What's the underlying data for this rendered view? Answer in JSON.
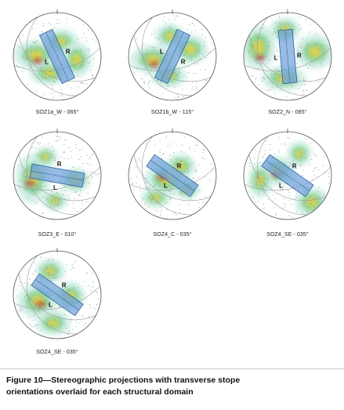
{
  "figure": {
    "panels": [
      {
        "label": "SOZ1a_W - 065°",
        "zone": "SOZ1a",
        "direction": "W",
        "orientation_deg": 65,
        "stope_letters": [
          "L",
          "R"
        ]
      },
      {
        "label": "SOZ1b_W - 115°",
        "zone": "SOZ1b",
        "direction": "W",
        "orientation_deg": 115,
        "stope_letters": [
          "L",
          "R"
        ]
      },
      {
        "label": "SOZ2_N - 085°",
        "zone": "SOZ2",
        "direction": "N",
        "orientation_deg": 85,
        "stope_letters": [
          "L",
          "R"
        ]
      },
      {
        "label": "SOZ3_E - 010°",
        "zone": "SOZ3",
        "direction": "E",
        "orientation_deg": 10,
        "stope_letters": [
          "L",
          "R"
        ]
      },
      {
        "label": "SOZ4_C - 035°",
        "zone": "SOZ4",
        "direction": "C",
        "orientation_deg": 35,
        "stope_letters": [
          "L",
          "R"
        ]
      },
      {
        "label": "SOZ4_SE - 035°",
        "zone": "SOZ4",
        "direction": "SE",
        "orientation_deg": 35,
        "stope_letters": [
          "L",
          "R"
        ]
      },
      {
        "label": "SOZ4_SE - 035°",
        "zone": "SOZ4",
        "direction": "SE",
        "orientation_deg": 35,
        "stope_letters": [
          "L",
          "R"
        ]
      }
    ],
    "caption_line1": "Figure 10—Stereographic projections with transverse stope",
    "caption_line2": "orientations overlaid for each structural domain"
  },
  "colors": {
    "stope_fill": "#6ea0d8",
    "stope_stroke": "#2f5f9e",
    "density_high": "#c0392b",
    "density_mid": "#e8d23a",
    "density_low": "#7ccf8a",
    "density_faint": "#cfeee6",
    "great_circle": "#9a9a9a",
    "poles": "#556677"
  }
}
